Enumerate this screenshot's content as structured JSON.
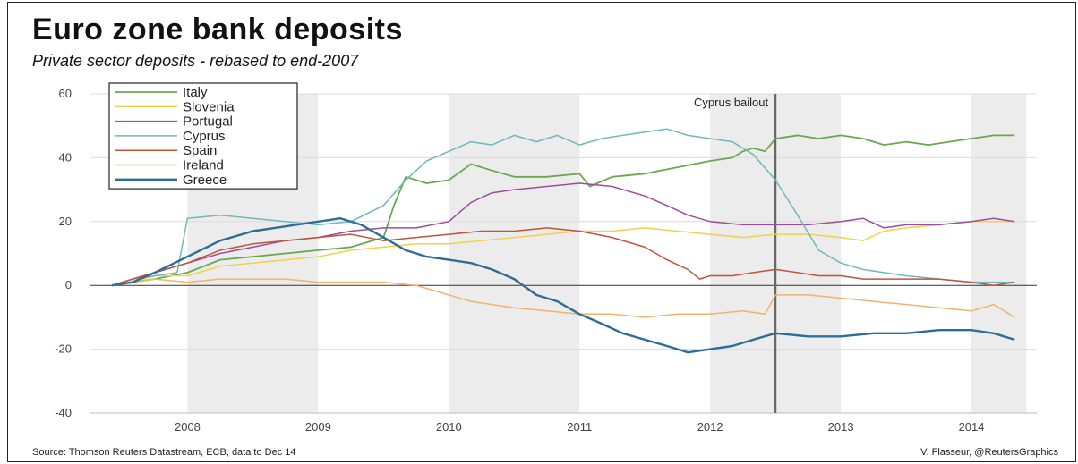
{
  "title": "Euro zone bank deposits",
  "subtitle": "Private sector deposits - rebased to end-2007",
  "source": "Source: Thomson Reuters Datastream, ECB, data to Dec 14",
  "credit": "V. Flasseur, @ReutersGraphics",
  "chart_data": {
    "type": "line",
    "title": "Euro zone bank deposits",
    "subtitle": "Private sector deposits - rebased to end-2007",
    "xlabel": "",
    "ylabel": "",
    "x_ticks": [
      "2008",
      "2009",
      "2010",
      "2011",
      "2012",
      "2013",
      "2014"
    ],
    "x_range": [
      2007.75,
      2015.0
    ],
    "ylim": [
      -40,
      60
    ],
    "y_ticks": [
      "60",
      "40",
      "20",
      "0",
      "-20",
      "-40"
    ],
    "y_tick_values": [
      60,
      40,
      20,
      0,
      -20,
      -40
    ],
    "grid": true,
    "legend_position": "top-left",
    "shaded_years": [
      [
        2008.5,
        2009.5
      ],
      [
        2010.5,
        2011.5
      ],
      [
        2012.5,
        2013.5
      ],
      [
        2014.5,
        2014.92
      ]
    ],
    "annotation": {
      "label": "Cyprus bailout",
      "x": 2013.0
    },
    "series": [
      {
        "name": "Italy",
        "color": "#6aa84f",
        "width": 1.8,
        "points": [
          [
            2007.92,
            0
          ],
          [
            2008.08,
            1
          ],
          [
            2008.25,
            2
          ],
          [
            2008.5,
            4
          ],
          [
            2008.75,
            8
          ],
          [
            2009.0,
            9
          ],
          [
            2009.25,
            10
          ],
          [
            2009.5,
            11
          ],
          [
            2009.75,
            12
          ],
          [
            2010.0,
            15
          ],
          [
            2010.08,
            25
          ],
          [
            2010.17,
            34
          ],
          [
            2010.33,
            32
          ],
          [
            2010.5,
            33
          ],
          [
            2010.67,
            38
          ],
          [
            2010.83,
            36
          ],
          [
            2011.0,
            34
          ],
          [
            2011.25,
            34
          ],
          [
            2011.5,
            35
          ],
          [
            2011.58,
            31
          ],
          [
            2011.75,
            34
          ],
          [
            2012.0,
            35
          ],
          [
            2012.25,
            37
          ],
          [
            2012.5,
            39
          ],
          [
            2012.67,
            40
          ],
          [
            2012.75,
            42
          ],
          [
            2012.83,
            43
          ],
          [
            2012.92,
            42
          ],
          [
            2013.0,
            46
          ],
          [
            2013.17,
            47
          ],
          [
            2013.33,
            46
          ],
          [
            2013.5,
            47
          ],
          [
            2013.67,
            46
          ],
          [
            2013.83,
            44
          ],
          [
            2014.0,
            45
          ],
          [
            2014.17,
            44
          ],
          [
            2014.33,
            45
          ],
          [
            2014.5,
            46
          ],
          [
            2014.67,
            47
          ],
          [
            2014.83,
            47
          ]
        ]
      },
      {
        "name": "Slovenia",
        "color": "#f2d04a",
        "width": 1.5,
        "points": [
          [
            2007.92,
            0
          ],
          [
            2008.08,
            1
          ],
          [
            2008.25,
            3
          ],
          [
            2008.5,
            3
          ],
          [
            2008.75,
            6
          ],
          [
            2009.0,
            7
          ],
          [
            2009.25,
            8
          ],
          [
            2009.5,
            9
          ],
          [
            2009.75,
            11
          ],
          [
            2010.0,
            12
          ],
          [
            2010.25,
            13
          ],
          [
            2010.5,
            13
          ],
          [
            2010.75,
            14
          ],
          [
            2011.0,
            15
          ],
          [
            2011.25,
            16
          ],
          [
            2011.5,
            17
          ],
          [
            2011.75,
            17
          ],
          [
            2012.0,
            18
          ],
          [
            2012.25,
            17
          ],
          [
            2012.5,
            16
          ],
          [
            2012.75,
            15
          ],
          [
            2013.0,
            16
          ],
          [
            2013.25,
            16
          ],
          [
            2013.5,
            15
          ],
          [
            2013.67,
            14
          ],
          [
            2013.83,
            17
          ],
          [
            2014.0,
            18
          ],
          [
            2014.25,
            19
          ],
          [
            2014.5,
            20
          ],
          [
            2014.67,
            20
          ],
          [
            2014.83,
            20
          ]
        ]
      },
      {
        "name": "Portugal",
        "color": "#9b4f9b",
        "width": 1.5,
        "points": [
          [
            2007.92,
            0
          ],
          [
            2008.08,
            2
          ],
          [
            2008.25,
            4
          ],
          [
            2008.5,
            7
          ],
          [
            2008.75,
            10
          ],
          [
            2009.0,
            12
          ],
          [
            2009.25,
            14
          ],
          [
            2009.5,
            15
          ],
          [
            2009.75,
            17
          ],
          [
            2010.0,
            18
          ],
          [
            2010.25,
            18
          ],
          [
            2010.5,
            20
          ],
          [
            2010.67,
            26
          ],
          [
            2010.83,
            29
          ],
          [
            2011.0,
            30
          ],
          [
            2011.25,
            31
          ],
          [
            2011.5,
            32
          ],
          [
            2011.75,
            31
          ],
          [
            2012.0,
            28
          ],
          [
            2012.17,
            25
          ],
          [
            2012.33,
            22
          ],
          [
            2012.5,
            20
          ],
          [
            2012.75,
            19
          ],
          [
            2013.0,
            19
          ],
          [
            2013.25,
            19
          ],
          [
            2013.5,
            20
          ],
          [
            2013.67,
            21
          ],
          [
            2013.83,
            18
          ],
          [
            2014.0,
            19
          ],
          [
            2014.25,
            19
          ],
          [
            2014.5,
            20
          ],
          [
            2014.67,
            21
          ],
          [
            2014.83,
            20
          ]
        ]
      },
      {
        "name": "Cyprus",
        "color": "#6fb8bc",
        "width": 1.5,
        "points": [
          [
            2007.92,
            0
          ],
          [
            2008.08,
            2
          ],
          [
            2008.25,
            3
          ],
          [
            2008.42,
            4
          ],
          [
            2008.5,
            21
          ],
          [
            2008.75,
            22
          ],
          [
            2009.0,
            21
          ],
          [
            2009.25,
            20
          ],
          [
            2009.5,
            19
          ],
          [
            2009.75,
            20
          ],
          [
            2010.0,
            25
          ],
          [
            2010.17,
            33
          ],
          [
            2010.33,
            39
          ],
          [
            2010.5,
            42
          ],
          [
            2010.67,
            45
          ],
          [
            2010.83,
            44
          ],
          [
            2011.0,
            47
          ],
          [
            2011.17,
            45
          ],
          [
            2011.33,
            47
          ],
          [
            2011.5,
            44
          ],
          [
            2011.67,
            46
          ],
          [
            2011.83,
            47
          ],
          [
            2012.0,
            48
          ],
          [
            2012.17,
            49
          ],
          [
            2012.33,
            47
          ],
          [
            2012.5,
            46
          ],
          [
            2012.67,
            45
          ],
          [
            2012.83,
            41
          ],
          [
            2013.0,
            33
          ],
          [
            2013.17,
            22
          ],
          [
            2013.33,
            11
          ],
          [
            2013.5,
            7
          ],
          [
            2013.67,
            5
          ],
          [
            2013.83,
            4
          ],
          [
            2014.0,
            3
          ],
          [
            2014.25,
            2
          ],
          [
            2014.5,
            1
          ],
          [
            2014.67,
            1
          ],
          [
            2014.83,
            1
          ]
        ]
      },
      {
        "name": "Spain",
        "color": "#c0543b",
        "width": 1.5,
        "points": [
          [
            2007.92,
            0
          ],
          [
            2008.08,
            2
          ],
          [
            2008.25,
            4
          ],
          [
            2008.5,
            7
          ],
          [
            2008.75,
            11
          ],
          [
            2009.0,
            13
          ],
          [
            2009.25,
            14
          ],
          [
            2009.5,
            15
          ],
          [
            2009.75,
            16
          ],
          [
            2010.0,
            14
          ],
          [
            2010.25,
            15
          ],
          [
            2010.5,
            16
          ],
          [
            2010.75,
            17
          ],
          [
            2011.0,
            17
          ],
          [
            2011.25,
            18
          ],
          [
            2011.5,
            17
          ],
          [
            2011.75,
            15
          ],
          [
            2012.0,
            12
          ],
          [
            2012.17,
            8
          ],
          [
            2012.33,
            5
          ],
          [
            2012.42,
            2
          ],
          [
            2012.5,
            3
          ],
          [
            2012.67,
            3
          ],
          [
            2012.83,
            4
          ],
          [
            2013.0,
            5
          ],
          [
            2013.17,
            4
          ],
          [
            2013.33,
            3
          ],
          [
            2013.5,
            3
          ],
          [
            2013.67,
            2
          ],
          [
            2013.83,
            2
          ],
          [
            2014.0,
            2
          ],
          [
            2014.25,
            2
          ],
          [
            2014.5,
            1
          ],
          [
            2014.67,
            0
          ],
          [
            2014.83,
            1
          ]
        ]
      },
      {
        "name": "Ireland",
        "color": "#f0b36a",
        "width": 1.5,
        "points": [
          [
            2007.92,
            0
          ],
          [
            2008.08,
            1
          ],
          [
            2008.25,
            2
          ],
          [
            2008.5,
            1
          ],
          [
            2008.75,
            2
          ],
          [
            2009.0,
            2
          ],
          [
            2009.25,
            2
          ],
          [
            2009.5,
            1
          ],
          [
            2009.75,
            1
          ],
          [
            2010.0,
            1
          ],
          [
            2010.25,
            0
          ],
          [
            2010.5,
            -3
          ],
          [
            2010.67,
            -5
          ],
          [
            2010.83,
            -6
          ],
          [
            2011.0,
            -7
          ],
          [
            2011.25,
            -8
          ],
          [
            2011.5,
            -9
          ],
          [
            2011.75,
            -9
          ],
          [
            2012.0,
            -10
          ],
          [
            2012.25,
            -9
          ],
          [
            2012.5,
            -9
          ],
          [
            2012.75,
            -8
          ],
          [
            2012.92,
            -9
          ],
          [
            2013.0,
            -3
          ],
          [
            2013.25,
            -3
          ],
          [
            2013.5,
            -4
          ],
          [
            2013.75,
            -5
          ],
          [
            2014.0,
            -6
          ],
          [
            2014.25,
            -7
          ],
          [
            2014.5,
            -8
          ],
          [
            2014.67,
            -6
          ],
          [
            2014.83,
            -10
          ]
        ]
      },
      {
        "name": "Greece",
        "color": "#2e6d96",
        "width": 2.4,
        "points": [
          [
            2007.92,
            0
          ],
          [
            2008.08,
            1
          ],
          [
            2008.25,
            4
          ],
          [
            2008.5,
            9
          ],
          [
            2008.75,
            14
          ],
          [
            2009.0,
            17
          ],
          [
            2009.17,
            18
          ],
          [
            2009.33,
            19
          ],
          [
            2009.5,
            20
          ],
          [
            2009.67,
            21
          ],
          [
            2009.83,
            19
          ],
          [
            2010.0,
            15
          ],
          [
            2010.17,
            11
          ],
          [
            2010.33,
            9
          ],
          [
            2010.5,
            8
          ],
          [
            2010.67,
            7
          ],
          [
            2010.83,
            5
          ],
          [
            2011.0,
            2
          ],
          [
            2011.17,
            -3
          ],
          [
            2011.33,
            -5
          ],
          [
            2011.5,
            -9
          ],
          [
            2011.67,
            -12
          ],
          [
            2011.83,
            -15
          ],
          [
            2012.0,
            -17
          ],
          [
            2012.17,
            -19
          ],
          [
            2012.33,
            -21
          ],
          [
            2012.5,
            -20
          ],
          [
            2012.67,
            -19
          ],
          [
            2012.83,
            -17
          ],
          [
            2013.0,
            -15
          ],
          [
            2013.25,
            -16
          ],
          [
            2013.5,
            -16
          ],
          [
            2013.75,
            -15
          ],
          [
            2014.0,
            -15
          ],
          [
            2014.25,
            -14
          ],
          [
            2014.5,
            -14
          ],
          [
            2014.67,
            -15
          ],
          [
            2014.83,
            -17
          ]
        ]
      }
    ]
  }
}
